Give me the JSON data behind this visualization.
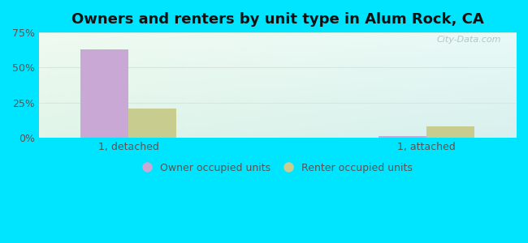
{
  "title": "Owners and renters by unit type in Alum Rock, CA",
  "categories": [
    "1, detached",
    "1, attached"
  ],
  "owner_values": [
    63,
    1
  ],
  "renter_values": [
    21,
    8
  ],
  "owner_color": "#c9a8d5",
  "renter_color": "#c8cc8e",
  "ylim_max": 75,
  "yticks": [
    0,
    25,
    50,
    75
  ],
  "ytick_labels": [
    "0%",
    "25%",
    "50%",
    "75%"
  ],
  "outer_bg": "#00e5ff",
  "legend_owner": "Owner occupied units",
  "legend_renter": "Renter occupied units",
  "watermark": "City-Data.com",
  "bar_width": 0.32,
  "x_positions": [
    0.6,
    2.6
  ],
  "xlim": [
    0.0,
    3.2
  ],
  "title_fontsize": 13,
  "axis_fontsize": 9,
  "text_color": "#555555",
  "grid_color": "#d8e8d8",
  "bg_left_top": "#f0faf0",
  "bg_left_bot": "#e0f5e8",
  "bg_right_top": "#e8faf8",
  "bg_right_bot": "#d8f0ee"
}
